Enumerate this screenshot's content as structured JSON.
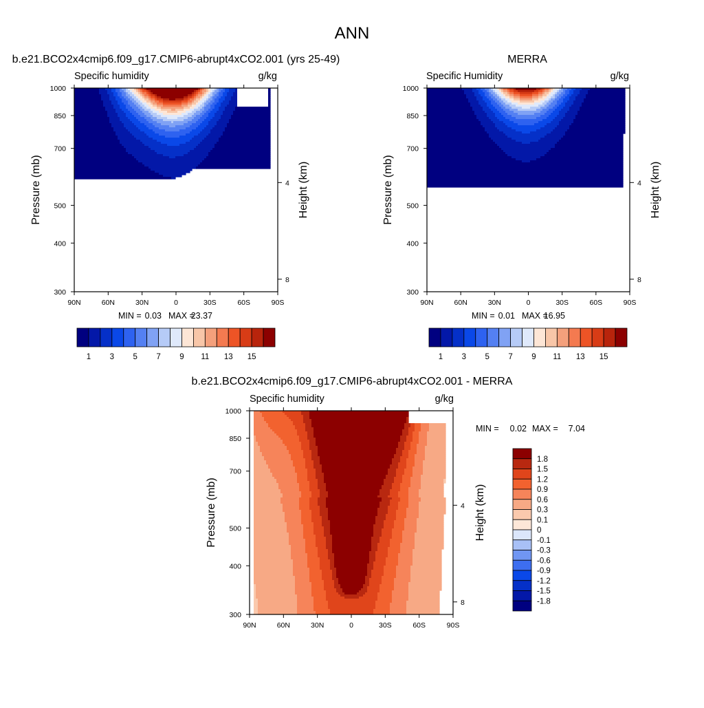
{
  "figure_title": "ANN",
  "colors": {
    "absolute_palette": [
      "#000080",
      "#0318a8",
      "#0530c8",
      "#0a48e8",
      "#2e62f0",
      "#5480f2",
      "#80a2f4",
      "#b6cbf7",
      "#dfe9fb",
      "#fde6d6",
      "#f8c6a8",
      "#f4a07c",
      "#f47a50",
      "#ed5426",
      "#d83c16",
      "#b8240c",
      "#8c0000"
    ],
    "diff_palette": [
      "#000080",
      "#0318a8",
      "#0530c8",
      "#0a48e8",
      "#3d6ef0",
      "#7096f3",
      "#a8c0f6",
      "#dbe6fb",
      "#fde7d8",
      "#fac9ad",
      "#f7a985",
      "#f6845a",
      "#f2622f",
      "#e0451b",
      "#b82810",
      "#8c0000"
    ]
  },
  "panels": {
    "model": {
      "case_title": "b.e21.BCO2x4cmip6.f09_g17.CMIP6-abrupt4xCO2.001 (yrs 25-49)",
      "variable": "Specific humidity",
      "units": "g/kg",
      "min_label": "MIN =",
      "min_value": "0.03",
      "max_label": "MAX =",
      "max_value": "23.37"
    },
    "obs": {
      "case_title": "MERRA",
      "variable": "Specific Humidity",
      "units": "g/kg",
      "min_label": "MIN =",
      "min_value": "0.01",
      "max_label": "MAX =",
      "max_value": "16.95"
    },
    "diff": {
      "case_title": "b.e21.BCO2x4cmip6.f09_g17.CMIP6-abrupt4xCO2.001 - MERRA",
      "variable": "Specific humidity",
      "units": "g/kg",
      "min_label": "MIN =",
      "min_value": "0.02",
      "max_label": "MAX =",
      "max_value": "7.04"
    }
  },
  "chart_data": [
    {
      "type": "heatmap",
      "title": "b.e21.BCO2x4cmip6.f09_g17.CMIP6-abrupt4xCO2.001 (yrs 25-49)",
      "subtitle": "Specific humidity",
      "units": "g/kg",
      "xlabel": "",
      "ylabel": "Pressure (mb)",
      "ylabel_right": "Height (km)",
      "x_ticks": [
        "90N",
        "60N",
        "30N",
        "0",
        "30S",
        "60S",
        "90S"
      ],
      "y_ticks": [
        "300",
        "400",
        "500",
        "700",
        "850",
        "1000"
      ],
      "y_right_ticks": [
        "8",
        "4"
      ],
      "contour_levels": [
        1,
        2,
        3,
        4,
        5,
        6,
        7,
        8,
        9,
        10,
        11,
        12,
        13,
        14,
        15,
        16
      ],
      "colorbar_labels": [
        "1",
        "3",
        "5",
        "7",
        "9",
        "11",
        "13",
        "15"
      ],
      "xlim": [
        90,
        -90
      ],
      "ylim": [
        1000,
        300
      ],
      "y_scale": "log",
      "min": 0.03,
      "max": 23.37
    },
    {
      "type": "heatmap",
      "title": "MERRA",
      "subtitle": "Specific Humidity",
      "units": "g/kg",
      "xlabel": "",
      "ylabel": "Pressure (mb)",
      "ylabel_right": "Height (km)",
      "x_ticks": [
        "90N",
        "60N",
        "30N",
        "0",
        "30S",
        "60S",
        "90S"
      ],
      "y_ticks": [
        "300",
        "400",
        "500",
        "700",
        "850",
        "1000"
      ],
      "y_right_ticks": [
        "8",
        "4"
      ],
      "contour_levels": [
        1,
        2,
        3,
        4,
        5,
        6,
        7,
        8,
        9,
        10,
        11,
        12,
        13,
        14,
        15,
        16
      ],
      "colorbar_labels": [
        "1",
        "3",
        "5",
        "7",
        "9",
        "11",
        "13",
        "15"
      ],
      "xlim": [
        90,
        -90
      ],
      "ylim": [
        1000,
        300
      ],
      "y_scale": "log",
      "min": 0.01,
      "max": 16.95
    },
    {
      "type": "heatmap",
      "title": "b.e21.BCO2x4cmip6.f09_g17.CMIP6-abrupt4xCO2.001 - MERRA",
      "subtitle": "Specific humidity",
      "units": "g/kg",
      "xlabel": "",
      "ylabel": "Pressure (mb)",
      "ylabel_right": "Height (km)",
      "x_ticks": [
        "90N",
        "60N",
        "30N",
        "0",
        "30S",
        "60S",
        "90S"
      ],
      "y_ticks": [
        "300",
        "400",
        "500",
        "700",
        "850",
        "1000"
      ],
      "y_right_ticks": [
        "8",
        "4"
      ],
      "contour_levels": [
        -1.8,
        -1.5,
        -1.2,
        -0.9,
        -0.6,
        -0.3,
        -0.1,
        0,
        0.1,
        0.3,
        0.6,
        0.9,
        1.2,
        1.5,
        1.8
      ],
      "colorbar_labels": [
        "1.8",
        "1.5",
        "1.2",
        "0.9",
        "0.6",
        "0.3",
        "0.1",
        "0",
        "-0.1",
        "-0.3",
        "-0.6",
        "-0.9",
        "-1.2",
        "-1.5",
        "-1.8"
      ],
      "xlim": [
        90,
        -90
      ],
      "ylim": [
        1000,
        300
      ],
      "y_scale": "log",
      "min": 0.02,
      "max": 7.04
    }
  ]
}
